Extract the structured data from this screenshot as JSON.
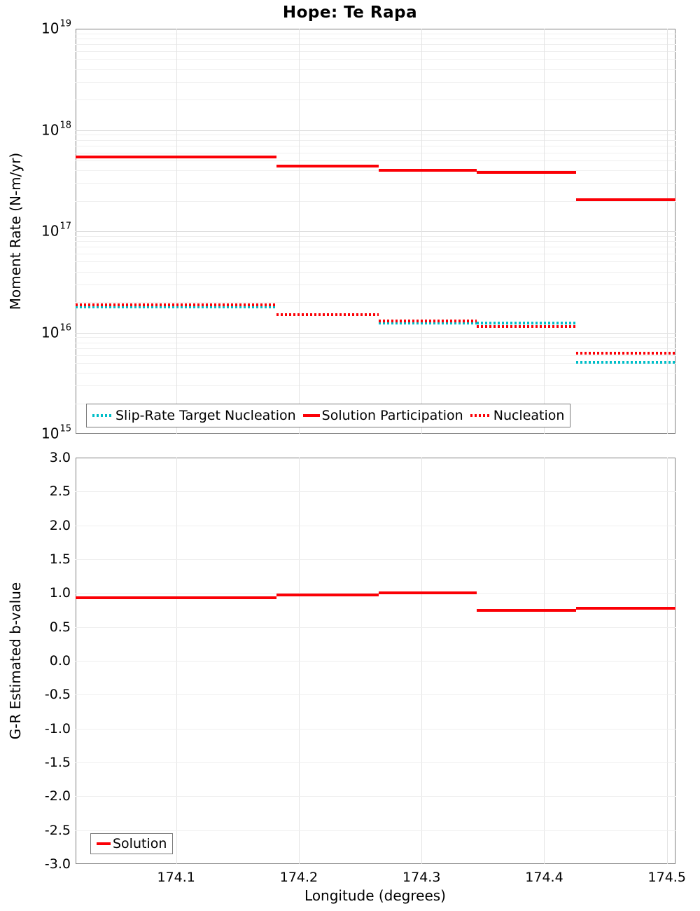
{
  "title": "Hope: Te Rapa",
  "colors": {
    "red": "#fb0006",
    "cyan": "#00bec8",
    "grid_major": "#d9d9d9",
    "grid_minor": "#efefef",
    "grid_vert": "#e4e4e4",
    "panel_border": "#7f7f7f",
    "text": "#000000"
  },
  "xaxis": {
    "label": "Longitude (degrees)",
    "tick_labels": [
      "174.1",
      "174.2",
      "174.3",
      "174.4",
      "174.5"
    ],
    "tick_values": [
      174.1,
      174.2,
      174.3,
      174.4,
      174.5
    ],
    "range": [
      174.018,
      174.507
    ]
  },
  "chart_data": [
    {
      "type": "line",
      "subtype": "step",
      "title": "Hope: Te Rapa",
      "ylabel": "Moment Rate (N-m/yr)",
      "yscale": "log",
      "ylim_exponents": [
        15,
        19
      ],
      "ytick_exponents": [
        19,
        18,
        17,
        16,
        15
      ],
      "grid": true,
      "legend_position": "bottom-left",
      "x_boundaries": [
        174.018,
        174.182,
        174.265,
        174.345,
        174.426,
        174.507
      ],
      "series": [
        {
          "name": "Slip-Rate Target Nucleation",
          "style": "dotted",
          "color_key": "cyan",
          "values": [
            1.79e+16,
            1.5e+16,
            1.24e+16,
            1.24e+16,
            5100000000000000.0
          ]
        },
        {
          "name": "Nucleation",
          "style": "dotted",
          "color_key": "red",
          "values": [
            1.88e+16,
            1.5e+16,
            1.3e+16,
            1.15e+16,
            6200000000000000.0
          ]
        },
        {
          "name": "Solution Participation",
          "style": "solid",
          "color_key": "red",
          "values": [
            5.4e+17,
            4.4e+17,
            4e+17,
            3.8e+17,
            2.05e+17
          ]
        }
      ]
    },
    {
      "type": "line",
      "subtype": "step",
      "ylabel": "G-R Estimated b-value",
      "xlabel": "Longitude (degrees)",
      "yscale": "linear",
      "ylim": [
        -3.0,
        3.0
      ],
      "ytick_step": 0.5,
      "grid": true,
      "legend_position": "bottom-left",
      "x_boundaries": [
        174.018,
        174.182,
        174.265,
        174.345,
        174.426,
        174.507
      ],
      "series": [
        {
          "name": "Solution",
          "style": "solid",
          "color_key": "red",
          "values": [
            0.93,
            0.97,
            1.0,
            0.75,
            0.78
          ]
        }
      ]
    }
  ]
}
